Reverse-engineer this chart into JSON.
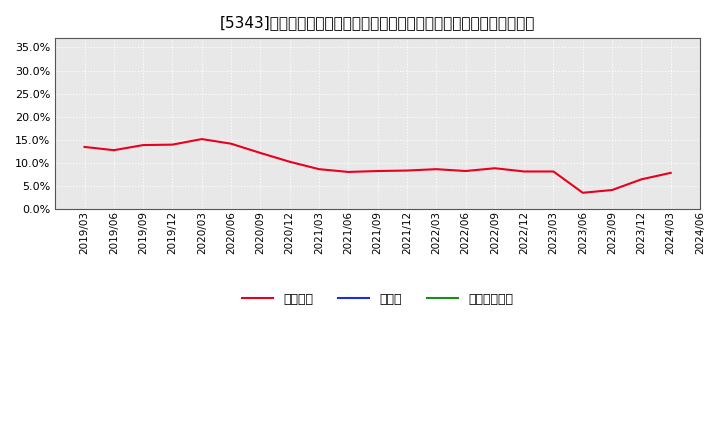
{
  "title": "[5343]　自己資本、のれん、繰延税金資産の総資産に対する比率の推移",
  "x_labels": [
    "2019/03",
    "2019/06",
    "2019/09",
    "2019/12",
    "2020/03",
    "2020/06",
    "2020/09",
    "2020/12",
    "2021/03",
    "2021/06",
    "2021/09",
    "2021/12",
    "2022/03",
    "2022/06",
    "2022/09",
    "2022/12",
    "2023/03",
    "2023/06",
    "2023/09",
    "2023/12",
    "2024/03",
    "2024/06"
  ],
  "equity_ratio": [
    13.5,
    12.8,
    13.9,
    14.0,
    15.2,
    14.2,
    12.2,
    10.3,
    8.7,
    8.1,
    8.3,
    8.4,
    8.7,
    8.3,
    8.9,
    8.2,
    8.2,
    3.6,
    4.2,
    6.5,
    7.9,
    null
  ],
  "noren_ratio": [
    null,
    null,
    null,
    null,
    null,
    null,
    null,
    null,
    null,
    null,
    null,
    null,
    null,
    null,
    null,
    null,
    null,
    null,
    null,
    null,
    null,
    null
  ],
  "deferred_tax_ratio": [
    null,
    null,
    null,
    null,
    null,
    null,
    null,
    null,
    null,
    null,
    null,
    null,
    null,
    null,
    null,
    null,
    null,
    null,
    null,
    null,
    null,
    null
  ],
  "equity_color": "#e8001c",
  "noren_color": "#1a2edb",
  "deferred_color": "#1a8c1a",
  "background_color": "#ffffff",
  "plot_bg_color": "#e8e8e8",
  "grid_color": "#ffffff",
  "border_color": "#555555",
  "ylim": [
    0,
    37
  ],
  "yticks": [
    0.0,
    5.0,
    10.0,
    15.0,
    20.0,
    25.0,
    30.0,
    35.0
  ],
  "legend_labels": [
    "自己資本",
    "のれん",
    "繰延税金資産"
  ],
  "title_fontsize": 11,
  "tick_fontsize": 7.5,
  "ytick_fontsize": 8
}
